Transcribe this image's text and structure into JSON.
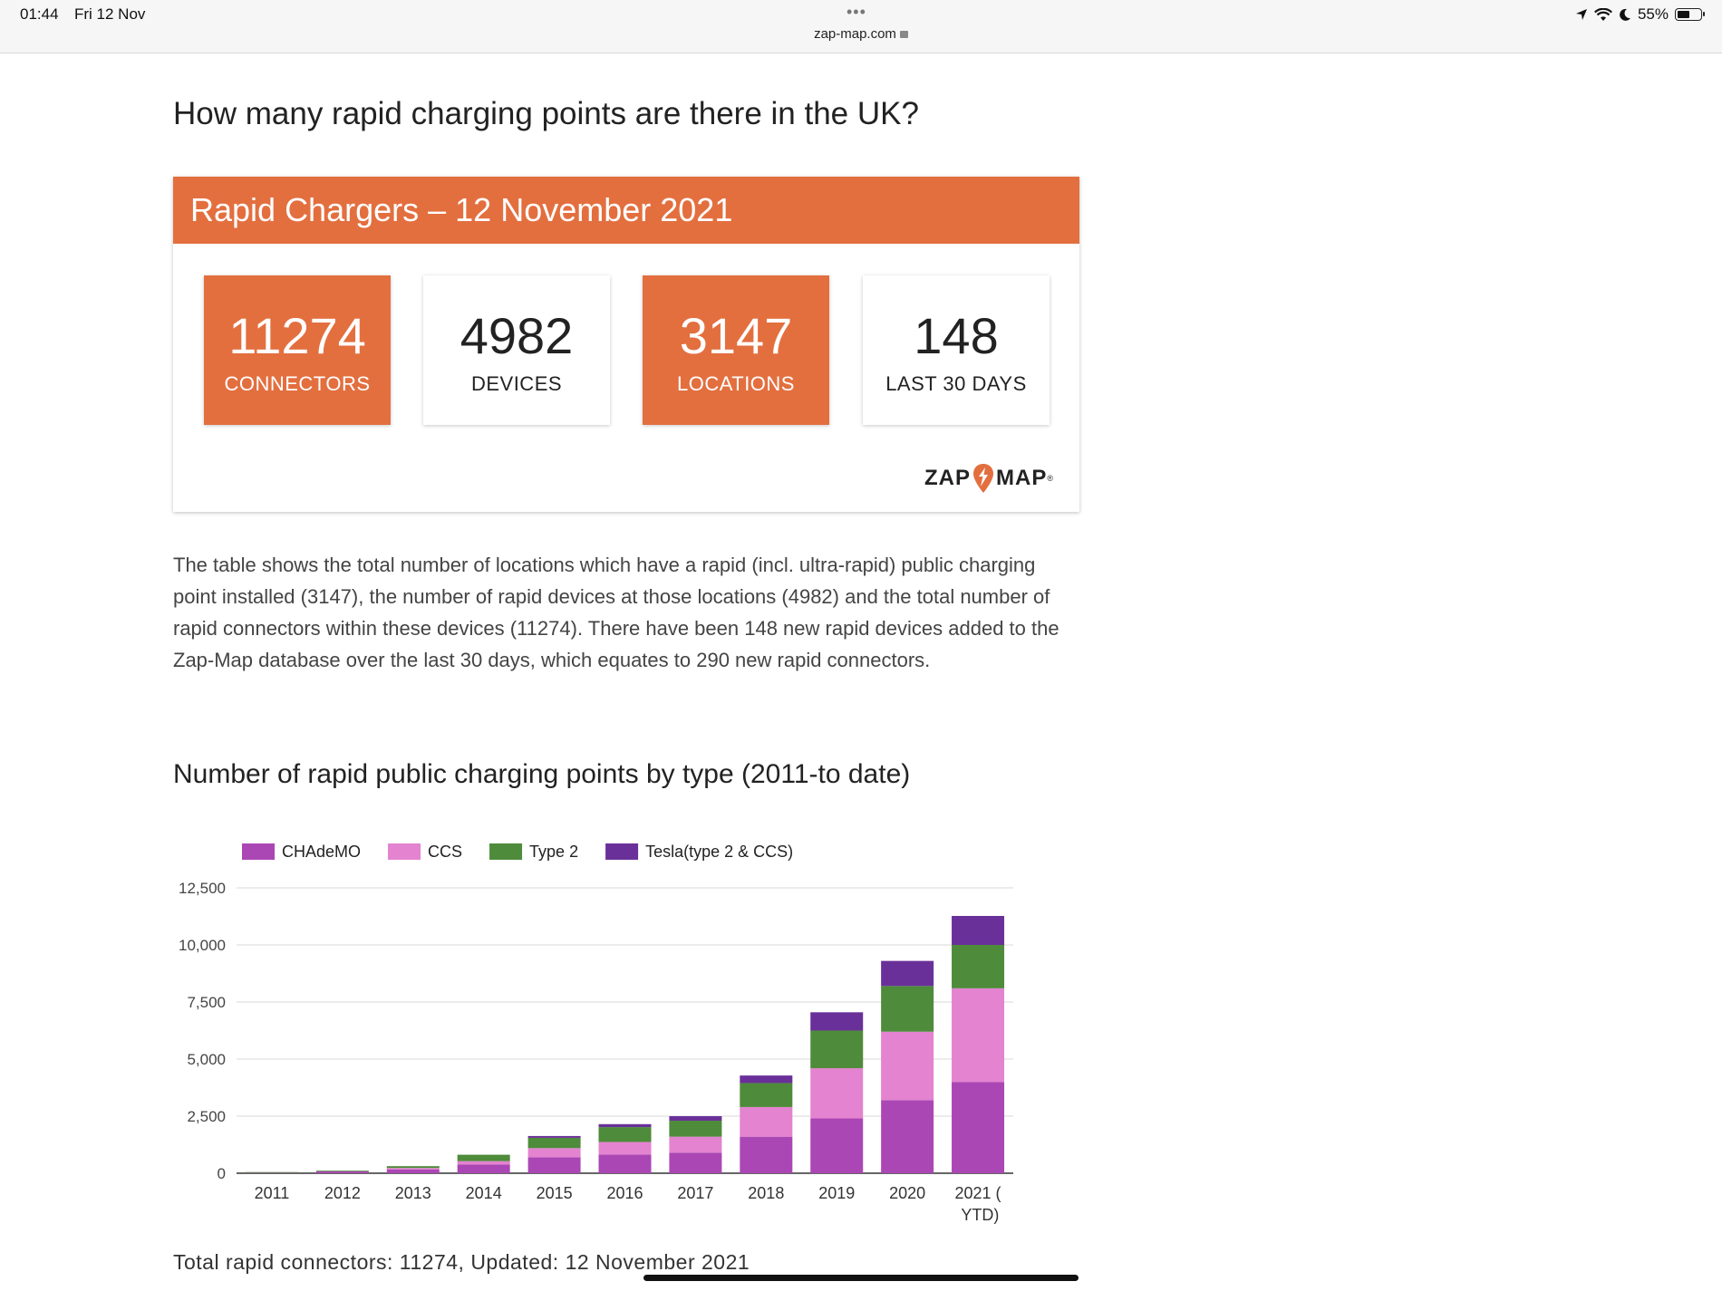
{
  "status_bar": {
    "time": "01:44",
    "date": "Fri 12 Nov",
    "url": "zap-map.com",
    "battery": "55%",
    "battery_level": 0.55
  },
  "page": {
    "heading": "How many rapid charging points are there in the UK?",
    "card": {
      "title": "Rapid Chargers – 12 November 2021",
      "stats": [
        {
          "value": "11274",
          "label": "CONNECTORS",
          "style": "orange"
        },
        {
          "value": "4982",
          "label": "DEVICES",
          "style": "white"
        },
        {
          "value": "3147",
          "label": "LOCATIONS",
          "style": "orange"
        },
        {
          "value": "148",
          "label": "LAST 30 DAYS",
          "style": "white"
        }
      ],
      "logo_left": "ZAP",
      "logo_right": "MAP",
      "logo_mark": "®"
    },
    "paragraph": "The table shows the total number of locations which have a rapid (incl. ultra-rapid) public charging point installed (3147), the number of rapid devices at those locations (4982) and the total number of rapid connectors within these devices (11274). There have been 148 new rapid devices added to the Zap-Map database over the last 30 days, which equates to 290 new rapid connectors.",
    "chart_title": "Number of rapid public charging points by type (2011-to date)",
    "footer": "Total rapid connectors: 11274, Updated: 12 November 2021"
  },
  "colors": {
    "accent": "#e36f3f",
    "chademo": "#ab47b4",
    "ccs": "#e483d0",
    "type2": "#4e8b3a",
    "tesla": "#6a3099"
  },
  "chart_data": {
    "type": "bar",
    "stacked": true,
    "categories": [
      "2011",
      "2012",
      "2013",
      "2014",
      "2015",
      "2016",
      "2017",
      "2018",
      "2019",
      "2020",
      "2021 ( YTD)"
    ],
    "series": [
      {
        "name": "CHAdeMO",
        "color": "#ab47b4",
        "values": [
          40,
          90,
          170,
          380,
          700,
          820,
          900,
          1600,
          2400,
          3200,
          4000
        ]
      },
      {
        "name": "CCS",
        "color": "#e483d0",
        "values": [
          0,
          0,
          60,
          150,
          400,
          550,
          700,
          1300,
          2200,
          3000,
          4100
        ]
      },
      {
        "name": "Type 2",
        "color": "#4e8b3a",
        "values": [
          10,
          20,
          80,
          280,
          450,
          650,
          700,
          1050,
          1650,
          2000,
          1900
        ]
      },
      {
        "name": "Tesla(type 2 & CCS)",
        "color": "#6a3099",
        "values": [
          0,
          0,
          0,
          0,
          80,
          130,
          200,
          330,
          800,
          1100,
          1270
        ]
      }
    ],
    "y_ticks": [
      "0",
      "2,500",
      "5,000",
      "7,500",
      "10,000",
      "12,500"
    ],
    "ylim": [
      0,
      12500
    ],
    "grid": true,
    "legend": "top"
  }
}
